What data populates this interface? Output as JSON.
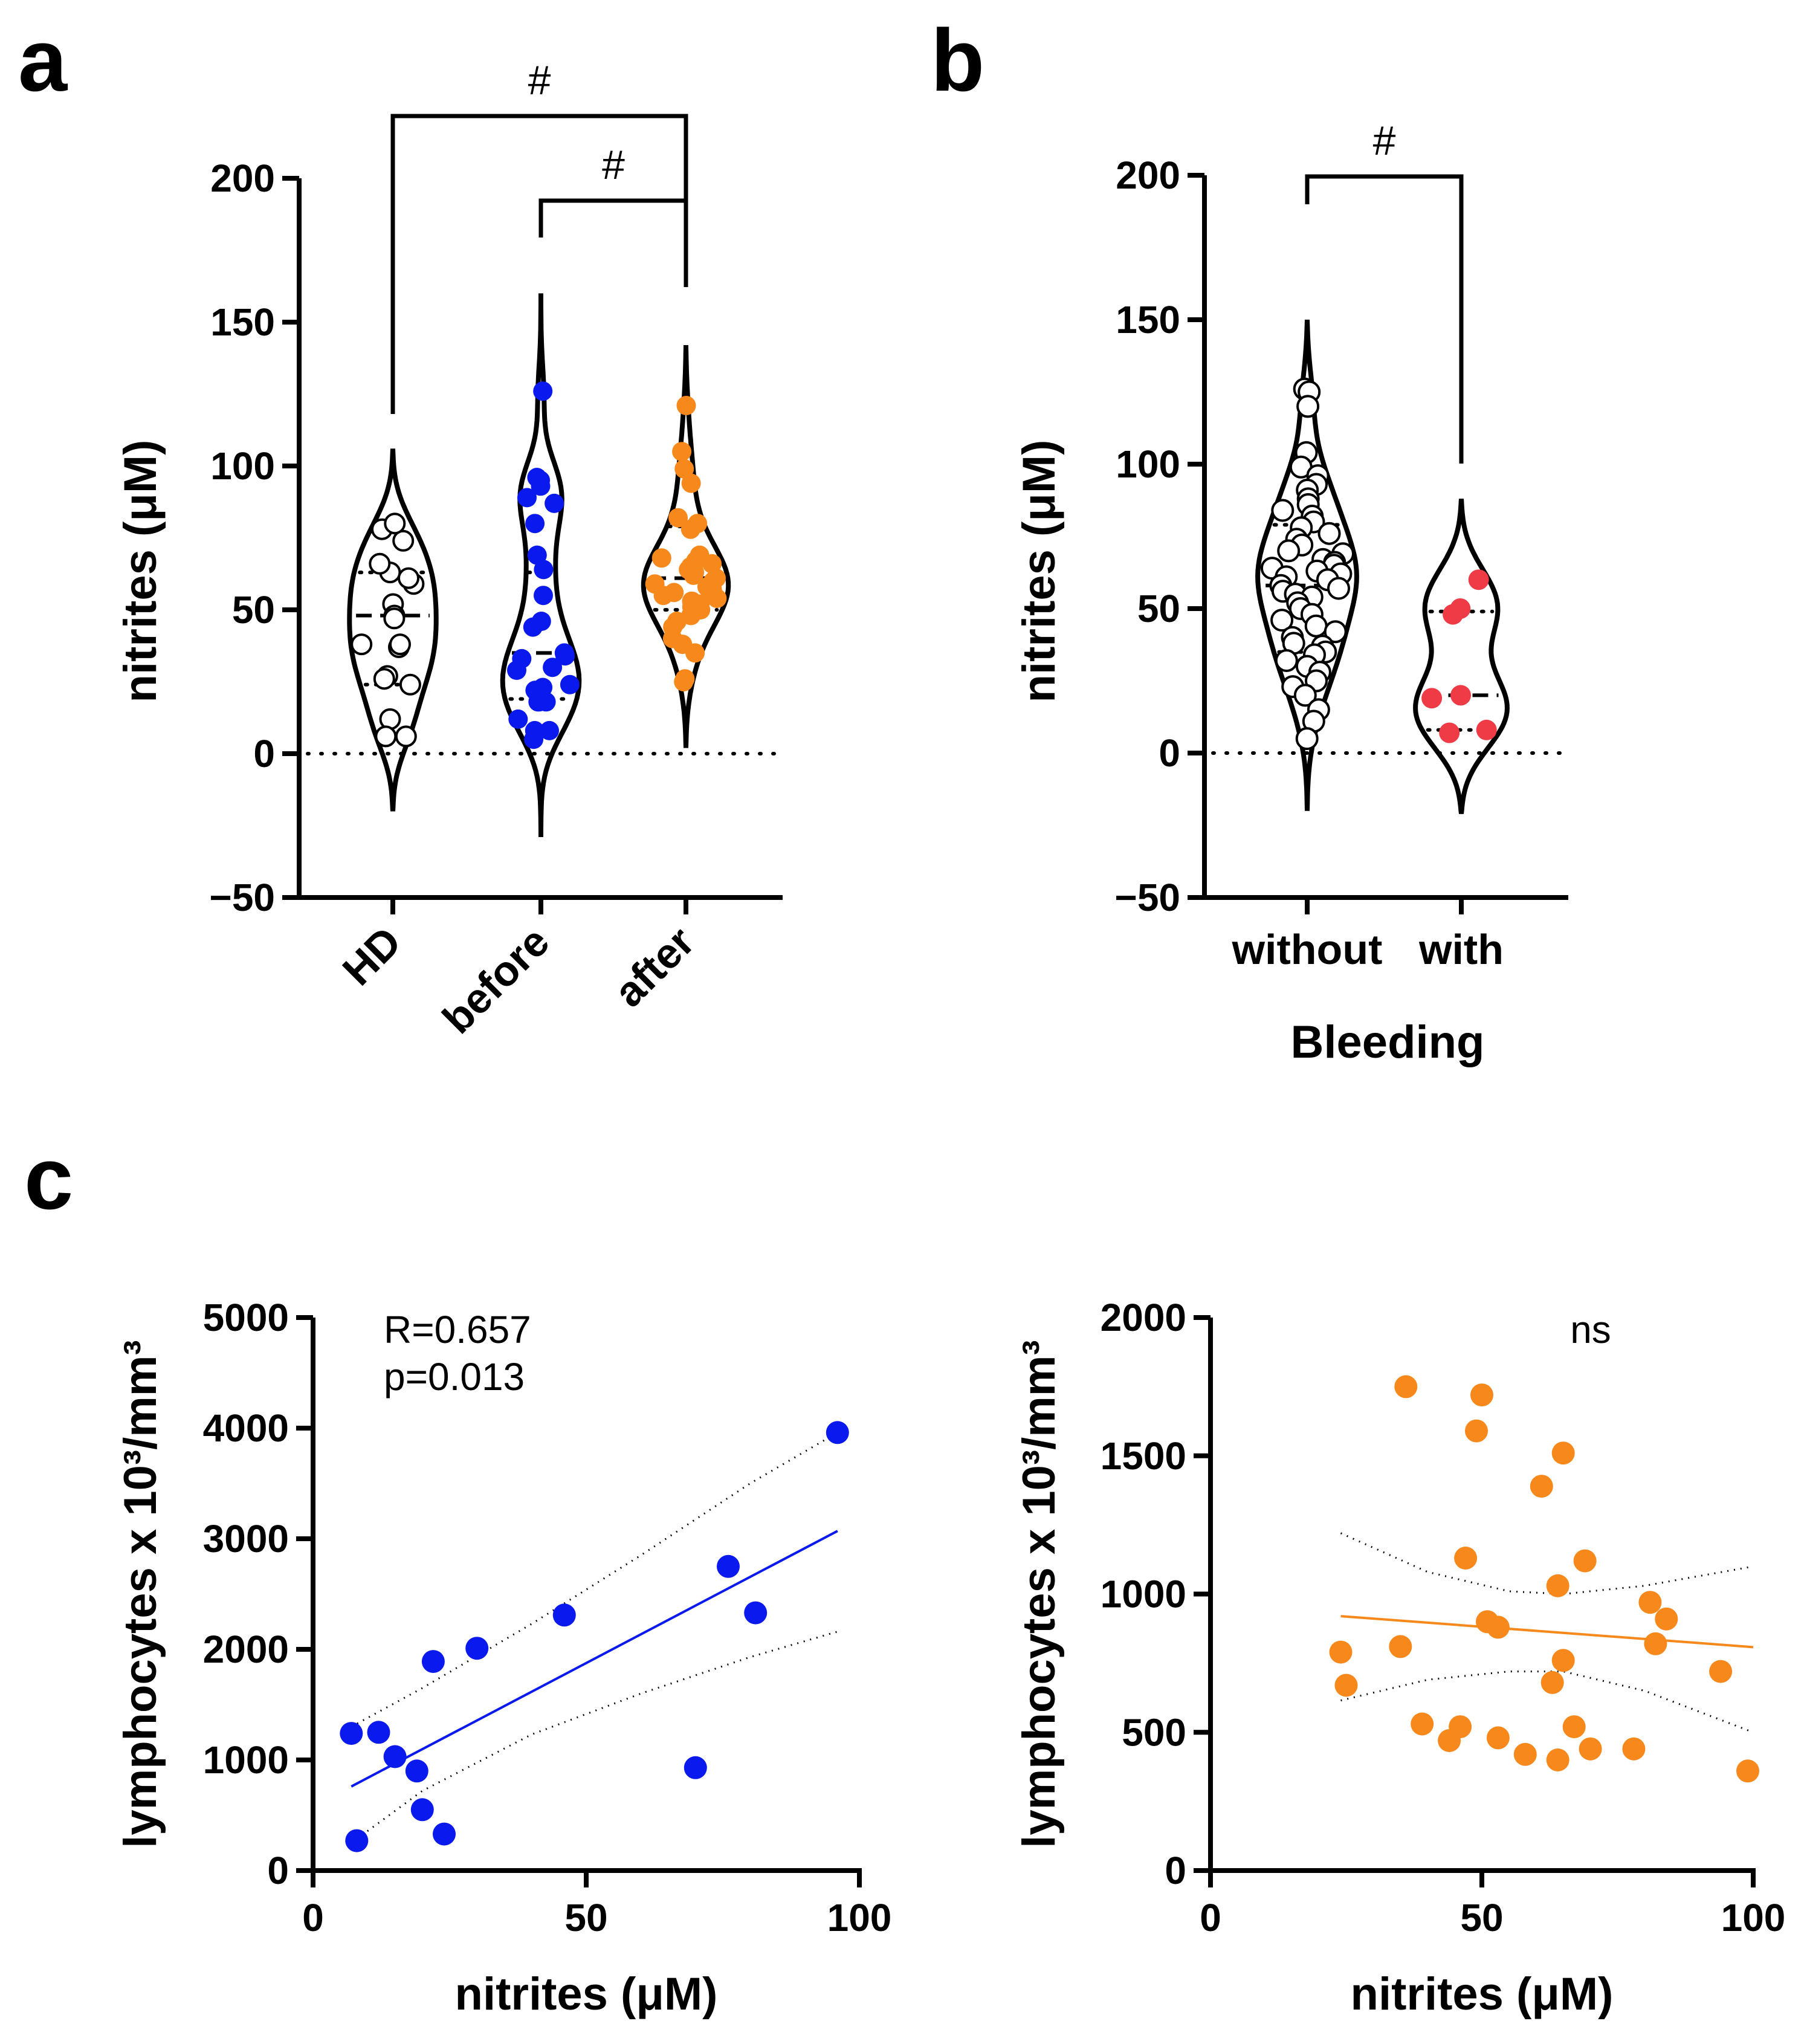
{
  "panels": {
    "a": {
      "label": "a",
      "ylabel": "nitrites (μM)",
      "significance": [
        "#",
        "#"
      ]
    },
    "b": {
      "label": "b",
      "ylabel": "nitrites (μM)",
      "xlabel": "Bleeding",
      "significance": [
        "#"
      ]
    },
    "c": {
      "label": "c",
      "stat_r": "R=0.657",
      "stat_p": "p=0.013",
      "stat_right": "ns"
    }
  },
  "colors": {
    "blue": "#0a1aee",
    "orange": "#f7891c",
    "red": "#ee3b46",
    "white": "#ffffff"
  },
  "chart_data": [
    {
      "id": "a",
      "type": "violin",
      "ylabel": "nitrites (μM)",
      "ylim": [
        -50,
        200
      ],
      "yticks": [
        -50,
        0,
        50,
        100,
        150,
        200
      ],
      "categories": [
        "HD",
        "before",
        "after"
      ],
      "series": [
        {
          "name": "HD",
          "color": "#ffffff",
          "violin_range": [
            -20,
            106
          ],
          "median": 48,
          "quartiles": [
            24,
            63
          ],
          "values": [
            78,
            74,
            80,
            63,
            66,
            59,
            61,
            52,
            48,
            47,
            38,
            37,
            38,
            27,
            24,
            26,
            12,
            6,
            6
          ]
        },
        {
          "name": "before",
          "color": "#0a1aee",
          "violin_range": [
            -29,
            160
          ],
          "median": 35,
          "quartiles": [
            19,
            63
          ],
          "values": [
            126,
            95,
            96,
            93,
            89,
            87,
            80,
            69,
            64,
            55,
            46,
            44,
            35,
            34,
            33,
            30,
            29,
            24,
            23,
            22,
            18,
            18,
            18,
            12,
            8,
            8,
            5
          ]
        },
        {
          "name": "after",
          "color": "#f7891c",
          "violin_range": [
            2,
            142
          ],
          "median": 61,
          "quartiles": [
            50,
            79
          ],
          "values": [
            121,
            105,
            99,
            94,
            82,
            80,
            78,
            69,
            68,
            67,
            66,
            65,
            64,
            63,
            62,
            61,
            60,
            59,
            58,
            57,
            56,
            55,
            54,
            53,
            52,
            51,
            50,
            48,
            46,
            44,
            40,
            38,
            35,
            26,
            25
          ]
        }
      ],
      "comparisons": [
        {
          "groups": [
            "HD",
            "after"
          ],
          "label": "#"
        },
        {
          "groups": [
            "before",
            "after"
          ],
          "label": "#"
        }
      ]
    },
    {
      "id": "b",
      "type": "violin",
      "ylabel": "nitrites (μM)",
      "xlabel": "Bleeding",
      "ylim": [
        -50,
        200
      ],
      "yticks": [
        -50,
        0,
        50,
        100,
        150,
        200
      ],
      "categories": [
        "without",
        "with"
      ],
      "series": [
        {
          "name": "without",
          "color": "#ffffff",
          "violin_range": [
            -20,
            150
          ],
          "median": 58,
          "quartiles": [
            35,
            79
          ],
          "values": [
            126,
            125,
            120,
            104,
            99,
            96,
            93,
            91,
            88,
            86,
            84,
            82,
            80,
            78,
            76,
            74,
            72,
            70,
            69,
            67,
            66,
            65,
            64,
            63,
            62,
            61,
            60,
            58,
            57,
            56,
            55,
            54,
            52,
            50,
            48,
            46,
            44,
            42,
            40,
            38,
            37,
            35,
            34,
            32,
            30,
            28,
            25,
            23,
            20,
            15,
            11,
            5
          ]
        },
        {
          "name": "with",
          "color": "#ee3b46",
          "violin_range": [
            -21,
            88
          ],
          "median": 20,
          "quartiles": [
            8,
            49
          ],
          "values": [
            60,
            50,
            48,
            20,
            19,
            8,
            7
          ]
        }
      ],
      "comparisons": [
        {
          "groups": [
            "without",
            "with"
          ],
          "label": "#"
        }
      ]
    },
    {
      "id": "c-left",
      "type": "scatter",
      "xlabel": "nitrites (μM)",
      "ylabel": "lymphocytes x 10³/mm³",
      "xlim": [
        0,
        100
      ],
      "ylim": [
        0,
        5000
      ],
      "xticks": [
        0,
        50,
        100
      ],
      "yticks": [
        0,
        1000,
        2000,
        3000,
        4000,
        5000
      ],
      "color": "#0a1aee",
      "points": [
        [
          96,
          3960
        ],
        [
          76,
          2750
        ],
        [
          81,
          2330
        ],
        [
          70,
          930
        ],
        [
          46,
          2310
        ],
        [
          30,
          2010
        ],
        [
          22,
          1890
        ],
        [
          7,
          1240
        ],
        [
          12,
          1250
        ],
        [
          15,
          1030
        ],
        [
          19,
          900
        ],
        [
          20,
          550
        ],
        [
          24,
          330
        ],
        [
          8,
          270
        ]
      ],
      "fit": {
        "x": [
          7,
          96
        ],
        "y": [
          760,
          3070
        ]
      },
      "ci_upper": {
        "x": [
          7,
          20,
          40,
          60,
          80,
          96
        ],
        "y": [
          1300,
          1650,
          2230,
          2850,
          3500,
          3960
        ]
      },
      "ci_lower": {
        "x": [
          7,
          20,
          40,
          60,
          80,
          96
        ],
        "y": [
          250,
          720,
          1230,
          1600,
          1930,
          2160
        ]
      },
      "annotations": [
        "R=0.657",
        "p=0.013"
      ]
    },
    {
      "id": "c-right",
      "type": "scatter",
      "xlabel": "nitrites (μM)",
      "ylabel": "lymphocytes x 10³/mm³",
      "xlim": [
        0,
        100
      ],
      "ylim": [
        0,
        2000
      ],
      "xticks": [
        0,
        50,
        100
      ],
      "yticks": [
        0,
        500,
        1000,
        1500,
        2000
      ],
      "color": "#f7891c",
      "points": [
        [
          36,
          1750
        ],
        [
          50,
          1720
        ],
        [
          49,
          1590
        ],
        [
          65,
          1510
        ],
        [
          61,
          1390
        ],
        [
          47,
          1130
        ],
        [
          69,
          1120
        ],
        [
          64,
          1030
        ],
        [
          81,
          970
        ],
        [
          84,
          910
        ],
        [
          51,
          900
        ],
        [
          53,
          880
        ],
        [
          82,
          820
        ],
        [
          35,
          810
        ],
        [
          24,
          790
        ],
        [
          65,
          760
        ],
        [
          94,
          720
        ],
        [
          63,
          680
        ],
        [
          25,
          670
        ],
        [
          39,
          530
        ],
        [
          46,
          520
        ],
        [
          67,
          520
        ],
        [
          53,
          480
        ],
        [
          44,
          470
        ],
        [
          70,
          440
        ],
        [
          58,
          420
        ],
        [
          78,
          440
        ],
        [
          64,
          400
        ],
        [
          99,
          360
        ]
      ],
      "fit": {
        "x": [
          24,
          100
        ],
        "y": [
          920,
          808
        ]
      },
      "ci_upper": {
        "x": [
          24,
          40,
          55,
          65,
          80,
          100
        ],
        "y": [
          1220,
          1080,
          1010,
          1000,
          1030,
          1100
        ]
      },
      "ci_lower": {
        "x": [
          24,
          40,
          55,
          65,
          80,
          100
        ],
        "y": [
          615,
          690,
          720,
          720,
          650,
          500
        ]
      },
      "annotations": [
        "ns"
      ]
    }
  ]
}
